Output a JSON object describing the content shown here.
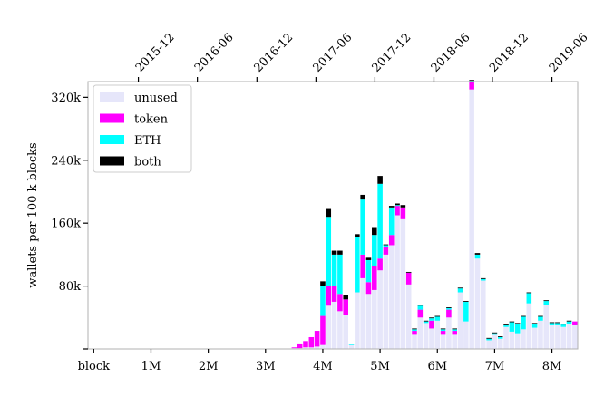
{
  "chart_data": {
    "type": "bar",
    "stacked": true,
    "title": "",
    "ylabel": "wallets per 100 k blocks",
    "xlabel": "",
    "bottom_x_axis": {
      "ticks": [
        0,
        1000000,
        2000000,
        3000000,
        4000000,
        5000000,
        6000000,
        7000000,
        8000000
      ],
      "tick_labels": [
        "block",
        "1M",
        "2M",
        "3M",
        "4M",
        "5M",
        "6M",
        "7M",
        "8M"
      ]
    },
    "top_x_axis": {
      "ticks": [
        780000,
        1810000,
        2850000,
        3880000,
        4910000,
        5940000,
        6960000,
        8000000
      ],
      "tick_labels": [
        "2015-12",
        "2016-06",
        "2016-12",
        "2017-06",
        "2017-12",
        "2018-06",
        "2018-12",
        "2019-06"
      ]
    },
    "xlim": [
      -100000,
      8450000
    ],
    "ylim": [
      0,
      340000
    ],
    "yticks": [
      0,
      80000,
      160000,
      240000,
      320000
    ],
    "ytick_labels": [
      "",
      "80k",
      "160k",
      "240k",
      "320k"
    ],
    "bin_width": 100000,
    "legend_position": "upper-left",
    "series": [
      {
        "name": "unused",
        "color": "#e6e6fa",
        "x": [
          1500000,
          3500000,
          3600000,
          3700000,
          3800000,
          3900000,
          4000000,
          4100000,
          4200000,
          4300000,
          4400000,
          4500000,
          4600000,
          4700000,
          4800000,
          4900000,
          5000000,
          5100000,
          5200000,
          5300000,
          5400000,
          5500000,
          5600000,
          5700000,
          5800000,
          5900000,
          6000000,
          6100000,
          6200000,
          6300000,
          6400000,
          6500000,
          6600000,
          6700000,
          6800000,
          6900000,
          7000000,
          7100000,
          7200000,
          7300000,
          7400000,
          7500000,
          7600000,
          7700000,
          7800000,
          7900000,
          8000000,
          8100000,
          8200000,
          8300000,
          8400000
        ],
        "values": [
          500,
          1000,
          1000,
          2000,
          2000,
          3000,
          5000,
          55000,
          60000,
          48000,
          43000,
          5000,
          72000,
          90000,
          70000,
          75000,
          100000,
          120000,
          132000,
          170000,
          165000,
          82000,
          18000,
          40000,
          33000,
          26000,
          36000,
          18000,
          40000,
          18000,
          72000,
          35000,
          330000,
          115000,
          87000,
          11000,
          18000,
          13000,
          28000,
          22000,
          20000,
          25000,
          58000,
          27000,
          36000,
          56000,
          30000,
          30000,
          28000,
          32000,
          30000
        ]
      },
      {
        "name": "token",
        "color": "#ff00ff",
        "x": [
          1500000,
          3500000,
          3600000,
          3700000,
          3800000,
          3900000,
          4000000,
          4100000,
          4200000,
          4300000,
          4400000,
          4500000,
          4600000,
          4700000,
          4800000,
          4900000,
          5000000,
          5100000,
          5200000,
          5300000,
          5400000,
          5500000,
          5600000,
          5700000,
          5800000,
          5900000,
          6000000,
          6100000,
          6200000,
          6300000,
          6400000,
          6500000,
          6600000,
          6700000,
          6800000,
          6900000,
          7000000,
          7100000,
          7200000,
          7300000,
          7400000,
          7500000,
          7600000,
          7700000,
          7800000,
          7900000,
          8000000,
          8100000,
          8200000,
          8300000,
          8400000
        ],
        "values": [
          0,
          1000,
          6000,
          8000,
          13000,
          20000,
          37000,
          25000,
          20000,
          22000,
          20000,
          0,
          0,
          30000,
          15000,
          30000,
          15000,
          10000,
          13000,
          12000,
          15000,
          15000,
          5000,
          10000,
          0,
          10000,
          0,
          5000,
          10000,
          5000,
          0,
          0,
          10000,
          0,
          0,
          0,
          0,
          0,
          0,
          0,
          0,
          0,
          0,
          0,
          0,
          0,
          0,
          0,
          0,
          0,
          5000
        ]
      },
      {
        "name": "ETH",
        "color": "#00ffff",
        "x": [
          4000000,
          4100000,
          4200000,
          4300000,
          4400000,
          4500000,
          4600000,
          4700000,
          4800000,
          4900000,
          5000000,
          5100000,
          5200000,
          5300000,
          5400000,
          5500000,
          5600000,
          5700000,
          5800000,
          5900000,
          6000000,
          6100000,
          6200000,
          6300000,
          6400000,
          6500000,
          6600000,
          6700000,
          6800000,
          6900000,
          7000000,
          7100000,
          7200000,
          7300000,
          7400000,
          7500000,
          7600000,
          7700000,
          7800000,
          7900000,
          8000000,
          8100000,
          8200000,
          8300000,
          8400000
        ],
        "values": [
          38000,
          88000,
          40000,
          50000,
          0,
          1000,
          70000,
          70000,
          28000,
          40000,
          95000,
          2000,
          35000,
          1000,
          0,
          0,
          2000,
          5000,
          2000,
          3000,
          5000,
          2000,
          2000,
          2000,
          5000,
          25000,
          1000,
          5000,
          2000,
          2000,
          2000,
          2000,
          2000,
          12000,
          12000,
          16000,
          13000,
          5000,
          5000,
          5000,
          3000,
          3000,
          3000,
          3000,
          0
        ]
      },
      {
        "name": "both",
        "color": "#000000",
        "x": [
          4000000,
          4100000,
          4200000,
          4300000,
          4400000,
          4600000,
          4700000,
          4800000,
          4900000,
          5000000,
          5100000,
          5200000,
          5300000,
          5400000,
          5500000,
          5600000,
          5700000,
          5800000,
          5900000,
          6000000,
          6100000,
          6200000,
          6300000,
          6400000,
          6500000,
          6600000,
          6700000,
          6800000,
          6900000,
          7000000,
          7100000,
          7200000,
          7300000,
          7400000,
          7500000,
          7600000,
          7700000,
          7800000,
          7900000,
          8000000,
          8100000,
          8200000,
          8300000
        ],
        "values": [
          6000,
          10000,
          5000,
          5000,
          5000,
          4000,
          6000,
          3000,
          10000,
          10000,
          1000,
          2000,
          2000,
          3000,
          1000,
          1000,
          1000,
          1000,
          1000,
          1000,
          1000,
          1000,
          1000,
          1000,
          1000,
          1000,
          2000,
          1000,
          1000,
          1000,
          1000,
          1000,
          1000,
          1000,
          1000,
          1000,
          1000,
          1000,
          1000,
          1000,
          1000,
          1000,
          1000
        ]
      }
    ]
  }
}
